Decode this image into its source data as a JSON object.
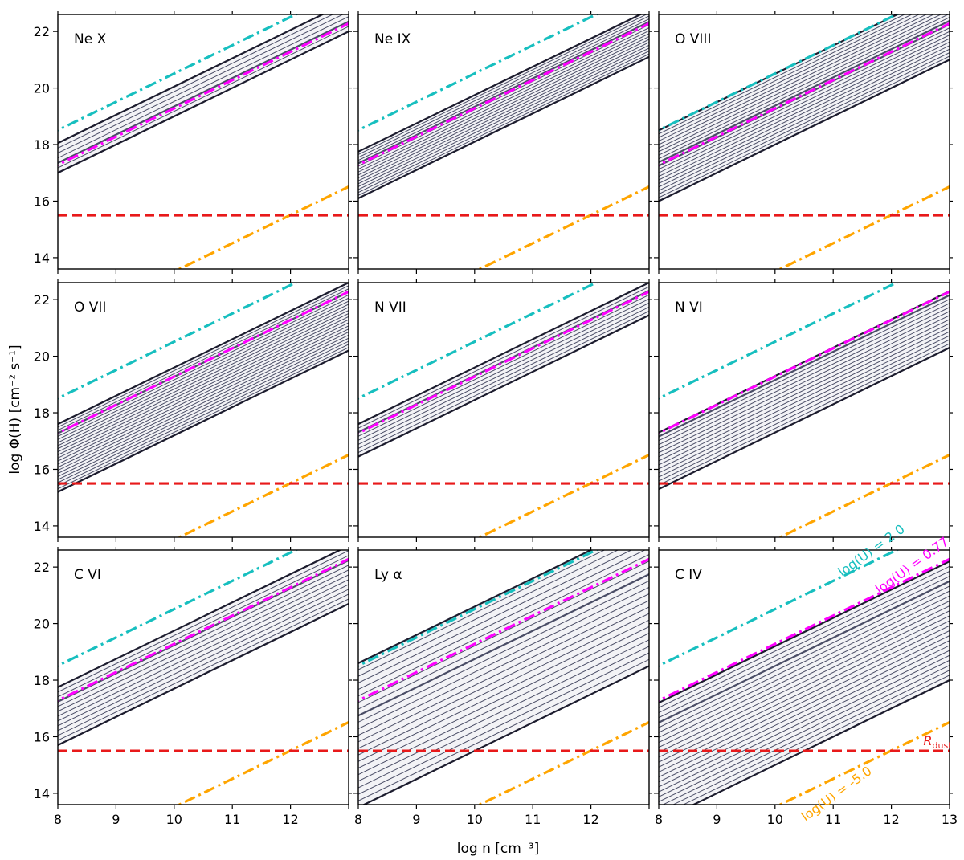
{
  "chart_data": {
    "type": "line",
    "layout": "3x3 grid of contour panels",
    "xlabel": "log n [cm⁻³]",
    "ylabel": "log Φ(H) [cm⁻² s⁻¹]",
    "xlim": [
      8,
      13
    ],
    "ylim": [
      13.6,
      22.6
    ],
    "xticks": [
      8,
      9,
      10,
      11,
      12,
      13
    ],
    "yticks": [
      14,
      16,
      18,
      20,
      22
    ],
    "reference_lines": [
      {
        "kind": "constant U",
        "logU": 2.0,
        "color": "#17bfbf",
        "style": "dash-dot",
        "label": "log(U) = 2.0"
      },
      {
        "kind": "constant U",
        "logU": 0.77,
        "color": "#ff00ff",
        "style": "dash-dot",
        "label": "log(U) = 0.77"
      },
      {
        "kind": "constant U",
        "logU": -5.0,
        "color": "#ffa500",
        "style": "dash-dot",
        "label": "log(U) = -5.0"
      },
      {
        "kind": "horizontal",
        "y": 15.5,
        "color": "#e8191a",
        "style": "dashed",
        "label": "R",
        "label_sub": "dust"
      }
    ],
    "panels": [
      {
        "title": "Ne X",
        "band": {
          "low": 17.0,
          "high": 18.05,
          "peak": 17.35
        },
        "n_contours": 6
      },
      {
        "title": "Ne IX",
        "band": {
          "low": 16.1,
          "high": 17.75,
          "peak": 17.3
        },
        "n_contours": 16
      },
      {
        "title": "O VIII",
        "band": {
          "low": 16.0,
          "high": 18.5,
          "peak": 17.3
        },
        "n_contours": 20
      },
      {
        "title": "O VII",
        "band": {
          "low": 15.2,
          "high": 17.6,
          "peak": 17.3
        },
        "n_contours": 22
      },
      {
        "title": "N VII",
        "band": {
          "low": 16.45,
          "high": 17.6,
          "peak": 17.3
        },
        "n_contours": 8
      },
      {
        "title": "N VI",
        "band": {
          "low": 15.3,
          "high": 17.3,
          "peak": 17.2
        },
        "n_contours": 14
      },
      {
        "title": "C VI",
        "band": {
          "low": 15.7,
          "high": 17.75,
          "peak": 17.3
        },
        "n_contours": 12
      },
      {
        "title": "Ly α",
        "band": {
          "low": 13.5,
          "high": 18.6,
          "peak": 16.8
        },
        "n_contours": 22
      },
      {
        "title": "C IV",
        "band": {
          "low": 13.0,
          "high": 17.2,
          "peak": 16.5
        },
        "n_contours": 24
      }
    ]
  }
}
